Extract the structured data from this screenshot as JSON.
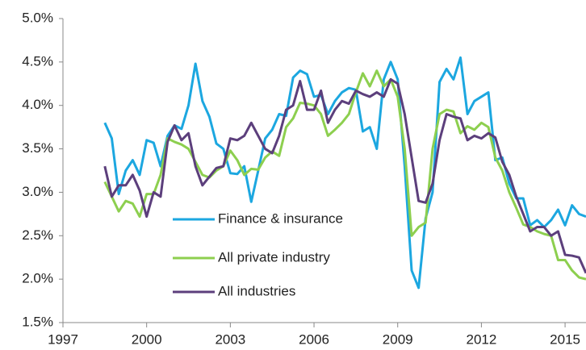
{
  "chart_data": {
    "type": "line",
    "x": [
      1998.5,
      1998.75,
      1999,
      1999.25,
      1999.5,
      1999.75,
      2000,
      2000.25,
      2000.5,
      2000.75,
      2001,
      2001.25,
      2001.5,
      2001.75,
      2002,
      2002.25,
      2002.5,
      2002.75,
      2003,
      2003.25,
      2003.5,
      2003.75,
      2004,
      2004.25,
      2004.5,
      2004.75,
      2005,
      2005.25,
      2005.5,
      2005.75,
      2006,
      2006.25,
      2006.5,
      2006.75,
      2007,
      2007.25,
      2007.5,
      2007.75,
      2008,
      2008.25,
      2008.5,
      2008.75,
      2009,
      2009.25,
      2009.5,
      2009.75,
      2010,
      2010.25,
      2010.5,
      2010.75,
      2011,
      2011.25,
      2011.5,
      2011.75,
      2012,
      2012.25,
      2012.5,
      2012.75,
      2013,
      2013.25,
      2013.5,
      2013.75,
      2014,
      2014.25,
      2014.5,
      2014.75,
      2015,
      2015.25,
      2015.5,
      2015.75
    ],
    "series": [
      {
        "name": "Finance & insurance",
        "color": "#1ca7e0",
        "values": [
          3.8,
          3.62,
          2.98,
          3.25,
          3.37,
          3.2,
          3.6,
          3.57,
          3.3,
          3.65,
          3.77,
          3.73,
          4.0,
          4.48,
          4.05,
          3.87,
          3.56,
          3.5,
          3.22,
          3.21,
          3.3,
          2.89,
          3.25,
          3.62,
          3.72,
          3.9,
          3.88,
          4.32,
          4.4,
          4.36,
          4.1,
          4.12,
          3.9,
          4.05,
          4.15,
          4.2,
          4.18,
          3.7,
          3.75,
          3.5,
          4.3,
          4.5,
          4.3,
          3.3,
          2.1,
          1.9,
          2.7,
          3.0,
          4.27,
          4.42,
          4.3,
          4.55,
          3.9,
          4.05,
          4.1,
          4.15,
          3.37,
          3.4,
          3.1,
          2.93,
          2.93,
          2.62,
          2.68,
          2.6,
          2.68,
          2.8,
          2.62,
          2.85,
          2.75,
          2.72
        ]
      },
      {
        "name": "All private industry",
        "color": "#8dcf4f",
        "values": [
          3.12,
          2.95,
          2.78,
          2.9,
          2.87,
          2.72,
          2.98,
          2.98,
          3.2,
          3.62,
          3.58,
          3.55,
          3.5,
          3.35,
          3.2,
          3.17,
          3.25,
          3.3,
          3.48,
          3.37,
          3.2,
          3.27,
          3.26,
          3.4,
          3.47,
          3.42,
          3.75,
          3.85,
          4.03,
          4.02,
          4.0,
          3.9,
          3.65,
          3.72,
          3.8,
          3.9,
          4.15,
          4.37,
          4.22,
          4.4,
          4.22,
          4.3,
          4.1,
          3.5,
          2.5,
          2.6,
          2.65,
          3.5,
          3.9,
          3.95,
          3.93,
          3.68,
          3.76,
          3.72,
          3.8,
          3.75,
          3.4,
          3.25,
          3.0,
          2.82,
          2.63,
          2.6,
          2.55,
          2.52,
          2.5,
          2.22,
          2.22,
          2.1,
          2.02,
          2.0
        ]
      },
      {
        "name": "All industries",
        "color": "#5c3f7c",
        "values": [
          3.3,
          2.95,
          3.08,
          3.08,
          3.2,
          3.02,
          2.72,
          3.0,
          2.95,
          3.58,
          3.77,
          3.6,
          3.68,
          3.3,
          3.08,
          3.18,
          3.28,
          3.3,
          3.62,
          3.6,
          3.65,
          3.8,
          3.65,
          3.5,
          3.45,
          3.65,
          3.95,
          4.0,
          4.28,
          3.95,
          3.95,
          4.17,
          3.8,
          3.95,
          4.05,
          4.02,
          4.17,
          4.13,
          4.1,
          4.15,
          4.1,
          4.3,
          4.25,
          3.9,
          3.4,
          2.9,
          2.88,
          3.1,
          3.6,
          3.9,
          3.87,
          3.85,
          3.6,
          3.65,
          3.62,
          3.68,
          3.63,
          3.35,
          3.2,
          2.95,
          2.75,
          2.55,
          2.6,
          2.6,
          2.5,
          2.55,
          2.28,
          2.27,
          2.25,
          2.07
        ]
      }
    ],
    "xlim": [
      1997,
      2015.75
    ],
    "xticks": [
      1997,
      2000,
      2003,
      2006,
      2009,
      2012,
      2015
    ],
    "ylim": [
      1.5,
      5
    ],
    "yticks": [
      {
        "value": 1.5,
        "label": "1.5%"
      },
      {
        "value": 2,
        "label": "2.0%"
      },
      {
        "value": 2.5,
        "label": "2.5%"
      },
      {
        "value": 3,
        "label": "3.0%"
      },
      {
        "value": 3.5,
        "label": "3.5%"
      },
      {
        "value": 4,
        "label": "4.0%"
      },
      {
        "value": 4.5,
        "label": "4.5%"
      },
      {
        "value": 5,
        "label": "5.0%"
      }
    ]
  }
}
